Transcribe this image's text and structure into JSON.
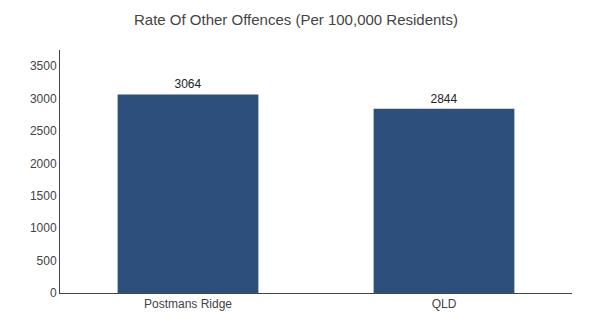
{
  "chart_data": {
    "type": "bar",
    "title": "Rate Of Other Offences (Per 100,000 Residents)",
    "categories": [
      "Postmans Ridge",
      "QLD"
    ],
    "values": [
      3064,
      2844
    ],
    "color": "#2d4f7c",
    "ylim": [
      0,
      3750
    ],
    "yticks": [
      0,
      500,
      1000,
      1500,
      2000,
      2500,
      3000,
      3500
    ],
    "grid": false,
    "data_labels": true
  }
}
